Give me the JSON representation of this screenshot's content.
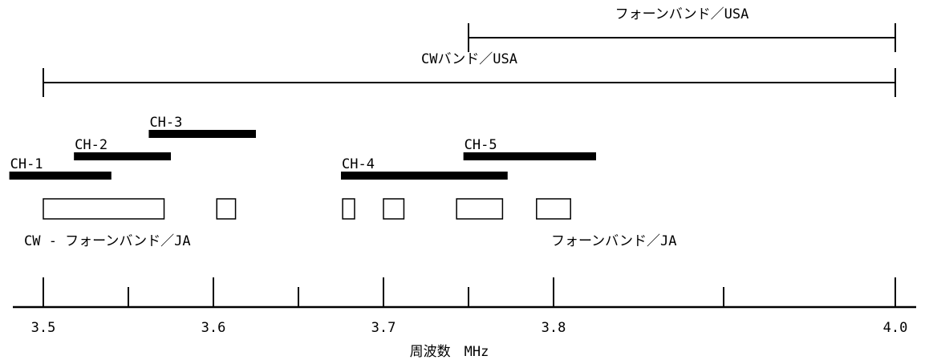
{
  "bands_usa": [
    {
      "label": "フォーンバンド／USA",
      "start": 3.75,
      "end": 4.0
    },
    {
      "label": "CWバンド／USA",
      "start": 3.5,
      "end": 4.0
    }
  ],
  "channels": [
    {
      "label": "CH-1",
      "start": 3.48,
      "end": 3.54
    },
    {
      "label": "CH-2",
      "start": 3.518,
      "end": 3.575
    },
    {
      "label": "CH-3",
      "start": 3.562,
      "end": 3.625
    },
    {
      "label": "CH-4",
      "start": 3.675,
      "end": 3.773
    },
    {
      "label": "CH-5",
      "start": 3.747,
      "end": 3.825
    }
  ],
  "ja_segments": [
    {
      "start": 3.5,
      "end": 3.571
    },
    {
      "start": 3.602,
      "end": 3.613
    },
    {
      "start": 3.676,
      "end": 3.683
    },
    {
      "start": 3.7,
      "end": 3.712
    },
    {
      "start": 3.743,
      "end": 3.77
    },
    {
      "start": 3.79,
      "end": 3.81
    }
  ],
  "ja_labels": {
    "cw_phone": "CW - フォーンバンド／JA",
    "phone": "フォーンバンド／JA"
  },
  "axis": {
    "min": 3.5,
    "max": 4.0,
    "major_ticks": [
      "3.5",
      "3.6",
      "3.7",
      "3.8",
      "4.0"
    ],
    "major_tick_values": [
      3.5,
      3.6,
      3.7,
      3.8,
      4.0
    ],
    "minor_tick_values": [
      3.55,
      3.65,
      3.75,
      3.9
    ],
    "label": "周波数　MHz"
  }
}
